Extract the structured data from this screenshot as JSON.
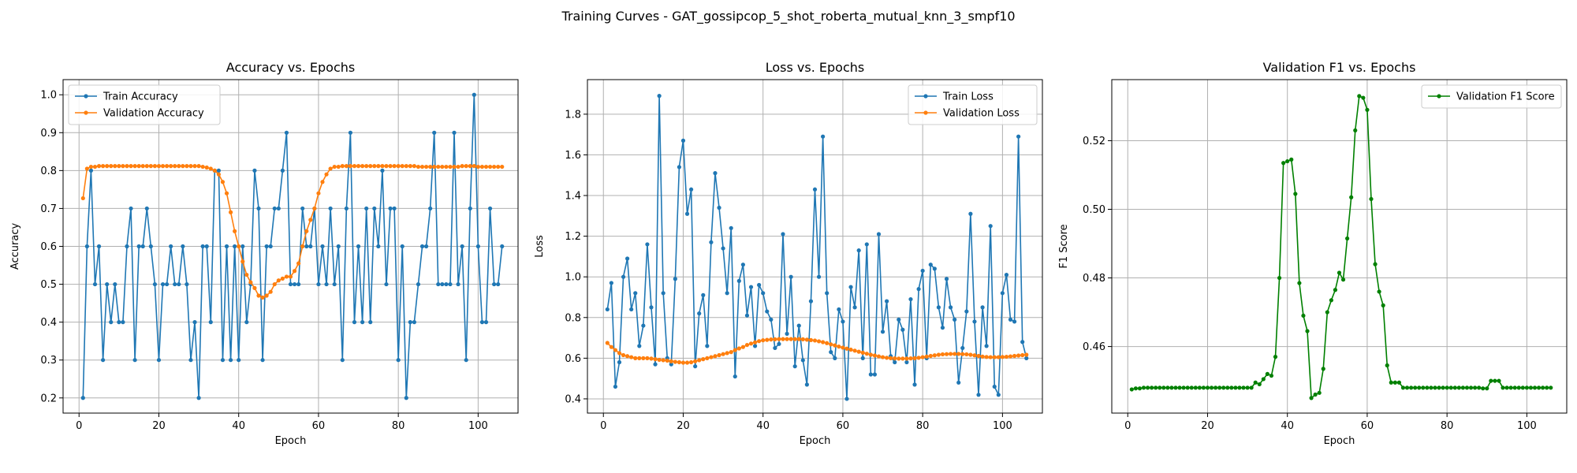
{
  "suptitle": "Training Curves - GAT_gossipcop_5_shot_roberta_mutual_knn_3_smpf10",
  "chart_data": [
    {
      "type": "line",
      "title": "Accuracy vs. Epochs",
      "xlabel": "Epoch",
      "ylabel": "Accuracy",
      "xlim": [
        -4,
        110
      ],
      "ylim": [
        0.16,
        1.04
      ],
      "xticks": [
        0,
        20,
        40,
        60,
        80,
        100
      ],
      "yticks": [
        0.2,
        0.3,
        0.4,
        0.5,
        0.6,
        0.7,
        0.8,
        0.9,
        1.0
      ],
      "ytick_labels": [
        "0.2",
        "0.3",
        "0.4",
        "0.5",
        "0.6",
        "0.7",
        "0.8",
        "0.9",
        "1.0"
      ],
      "grid": true,
      "legend": "upper left",
      "x_start": 1,
      "series": [
        {
          "name": "Train Accuracy",
          "color": "#1f77b4",
          "values": [
            0.2,
            0.6,
            0.8,
            0.5,
            0.6,
            0.3,
            0.5,
            0.4,
            0.5,
            0.4,
            0.4,
            0.6,
            0.7,
            0.3,
            0.6,
            0.6,
            0.7,
            0.6,
            0.5,
            0.3,
            0.5,
            0.5,
            0.6,
            0.5,
            0.5,
            0.6,
            0.5,
            0.3,
            0.4,
            0.2,
            0.6,
            0.6,
            0.4,
            0.8,
            0.8,
            0.3,
            0.6,
            0.3,
            0.6,
            0.3,
            0.6,
            0.4,
            0.5,
            0.8,
            0.7,
            0.3,
            0.6,
            0.6,
            0.7,
            0.7,
            0.8,
            0.9,
            0.5,
            0.5,
            0.5,
            0.7,
            0.6,
            0.6,
            0.7,
            0.5,
            0.6,
            0.5,
            0.7,
            0.5,
            0.6,
            0.3,
            0.7,
            0.9,
            0.4,
            0.6,
            0.4,
            0.7,
            0.4,
            0.7,
            0.6,
            0.8,
            0.5,
            0.7,
            0.7,
            0.3,
            0.6,
            0.2,
            0.4,
            0.4,
            0.5,
            0.6,
            0.6,
            0.7,
            0.9,
            0.5,
            0.5,
            0.5,
            0.5,
            0.9,
            0.5,
            0.6,
            0.3,
            0.7,
            1.0,
            0.6,
            0.4,
            0.4,
            0.7,
            0.5,
            0.5,
            0.6
          ]
        },
        {
          "name": "Validation Accuracy",
          "color": "#ff7f0e",
          "values": [
            0.727,
            0.805,
            0.81,
            0.81,
            0.812,
            0.812,
            0.812,
            0.812,
            0.812,
            0.812,
            0.812,
            0.812,
            0.812,
            0.812,
            0.812,
            0.812,
            0.812,
            0.812,
            0.812,
            0.812,
            0.812,
            0.812,
            0.812,
            0.812,
            0.812,
            0.812,
            0.812,
            0.812,
            0.812,
            0.812,
            0.81,
            0.808,
            0.805,
            0.8,
            0.79,
            0.77,
            0.74,
            0.69,
            0.64,
            0.6,
            0.56,
            0.525,
            0.505,
            0.49,
            0.47,
            0.465,
            0.47,
            0.48,
            0.5,
            0.51,
            0.515,
            0.52,
            0.52,
            0.535,
            0.555,
            0.6,
            0.64,
            0.67,
            0.7,
            0.74,
            0.77,
            0.79,
            0.805,
            0.81,
            0.81,
            0.812,
            0.812,
            0.812,
            0.812,
            0.812,
            0.812,
            0.812,
            0.812,
            0.812,
            0.812,
            0.812,
            0.812,
            0.812,
            0.812,
            0.812,
            0.812,
            0.812,
            0.812,
            0.812,
            0.81,
            0.81,
            0.81,
            0.81,
            0.81,
            0.81,
            0.81,
            0.81,
            0.81,
            0.81,
            0.81,
            0.812,
            0.812,
            0.812,
            0.812,
            0.81,
            0.81,
            0.81,
            0.81,
            0.81,
            0.81,
            0.81
          ]
        }
      ]
    },
    {
      "type": "line",
      "title": "Loss vs. Epochs",
      "xlabel": "Epoch",
      "ylabel": "Loss",
      "xlim": [
        -4,
        110
      ],
      "ylim": [
        0.33,
        1.97
      ],
      "xticks": [
        0,
        20,
        40,
        60,
        80,
        100
      ],
      "yticks": [
        0.4,
        0.6,
        0.8,
        1.0,
        1.2,
        1.4,
        1.6,
        1.8
      ],
      "ytick_labels": [
        "0.4",
        "0.6",
        "0.8",
        "1.0",
        "1.2",
        "1.4",
        "1.6",
        "1.8"
      ],
      "grid": true,
      "legend": "upper right",
      "x_start": 1,
      "series": [
        {
          "name": "Train Loss",
          "color": "#1f77b4",
          "values": [
            0.84,
            0.97,
            0.46,
            0.58,
            1.0,
            1.09,
            0.84,
            0.92,
            0.66,
            0.76,
            1.16,
            0.85,
            0.57,
            1.89,
            0.92,
            0.6,
            0.57,
            0.99,
            1.54,
            1.67,
            1.31,
            1.43,
            0.56,
            0.82,
            0.91,
            0.66,
            1.17,
            1.51,
            1.34,
            1.14,
            0.92,
            1.24,
            0.51,
            0.98,
            1.06,
            0.81,
            0.95,
            0.66,
            0.96,
            0.92,
            0.83,
            0.79,
            0.65,
            0.67,
            1.21,
            0.72,
            1.0,
            0.56,
            0.76,
            0.59,
            0.47,
            0.88,
            1.43,
            1.0,
            1.69,
            0.92,
            0.63,
            0.6,
            0.84,
            0.78,
            0.4,
            0.95,
            0.85,
            1.13,
            0.6,
            1.16,
            0.52,
            0.52,
            1.21,
            0.73,
            0.88,
            0.61,
            0.58,
            0.79,
            0.74,
            0.58,
            0.89,
            0.47,
            0.94,
            1.03,
            0.6,
            1.06,
            1.04,
            0.85,
            0.75,
            0.99,
            0.85,
            0.79,
            0.48,
            0.65,
            0.83,
            1.31,
            0.78,
            0.42,
            0.85,
            0.66,
            1.25,
            0.46,
            0.42,
            0.92,
            1.01,
            0.79,
            0.78,
            1.69,
            0.68,
            0.6
          ]
        },
        {
          "name": "Validation Loss",
          "color": "#ff7f0e",
          "values": [
            0.675,
            0.655,
            0.64,
            0.625,
            0.615,
            0.61,
            0.605,
            0.6,
            0.6,
            0.6,
            0.6,
            0.598,
            0.595,
            0.592,
            0.59,
            0.588,
            0.585,
            0.582,
            0.58,
            0.578,
            0.578,
            0.58,
            0.585,
            0.59,
            0.595,
            0.6,
            0.605,
            0.61,
            0.615,
            0.62,
            0.625,
            0.63,
            0.64,
            0.648,
            0.655,
            0.665,
            0.672,
            0.678,
            0.684,
            0.688,
            0.69,
            0.692,
            0.693,
            0.694,
            0.694,
            0.694,
            0.694,
            0.694,
            0.694,
            0.693,
            0.691,
            0.689,
            0.687,
            0.683,
            0.679,
            0.674,
            0.668,
            0.663,
            0.657,
            0.652,
            0.647,
            0.642,
            0.637,
            0.632,
            0.627,
            0.622,
            0.617,
            0.613,
            0.609,
            0.605,
            0.602,
            0.6,
            0.599,
            0.598,
            0.598,
            0.598,
            0.599,
            0.6,
            0.602,
            0.605,
            0.608,
            0.611,
            0.614,
            0.617,
            0.619,
            0.62,
            0.621,
            0.621,
            0.621,
            0.62,
            0.619,
            0.617,
            0.614,
            0.611,
            0.608,
            0.606,
            0.605,
            0.605,
            0.605,
            0.606,
            0.607,
            0.609,
            0.611,
            0.613,
            0.615,
            0.617
          ]
        }
      ]
    },
    {
      "type": "line",
      "title": "Validation F1 vs. Epochs",
      "xlabel": "Epoch",
      "ylabel": "F1 Score",
      "xlim": [
        -4,
        110
      ],
      "ylim": [
        0.4406,
        0.5378
      ],
      "xticks": [
        0,
        20,
        40,
        60,
        80,
        100
      ],
      "yticks": [
        0.46,
        0.48,
        0.5,
        0.52
      ],
      "ytick_labels": [
        "0.46",
        "0.48",
        "0.50",
        "0.52"
      ],
      "grid": true,
      "legend": "upper right",
      "x_start": 1,
      "series": [
        {
          "name": "Validation F1 Score",
          "color": "#008000",
          "values": [
            0.4475,
            0.4478,
            0.4478,
            0.448,
            0.448,
            0.448,
            0.448,
            0.448,
            0.448,
            0.448,
            0.448,
            0.448,
            0.448,
            0.448,
            0.448,
            0.448,
            0.448,
            0.448,
            0.448,
            0.448,
            0.448,
            0.448,
            0.448,
            0.448,
            0.448,
            0.448,
            0.448,
            0.448,
            0.448,
            0.448,
            0.448,
            0.4495,
            0.449,
            0.4505,
            0.452,
            0.4515,
            0.457,
            0.48,
            0.5135,
            0.514,
            0.5145,
            0.5045,
            0.4785,
            0.469,
            0.4645,
            0.445,
            0.446,
            0.4465,
            0.4535,
            0.47,
            0.4735,
            0.4765,
            0.4815,
            0.4795,
            0.4915,
            0.5035,
            0.523,
            0.533,
            0.5325,
            0.529,
            0.503,
            0.484,
            0.476,
            0.472,
            0.4545,
            0.4495,
            0.4495,
            0.4495,
            0.448,
            0.448,
            0.448,
            0.448,
            0.448,
            0.448,
            0.448,
            0.448,
            0.448,
            0.448,
            0.448,
            0.448,
            0.448,
            0.448,
            0.448,
            0.448,
            0.448,
            0.448,
            0.448,
            0.448,
            0.4478,
            0.4478,
            0.45,
            0.45,
            0.45,
            0.448,
            0.448,
            0.448,
            0.448,
            0.448,
            0.448,
            0.448,
            0.448,
            0.448,
            0.448,
            0.448,
            0.448,
            0.448
          ]
        }
      ]
    }
  ]
}
